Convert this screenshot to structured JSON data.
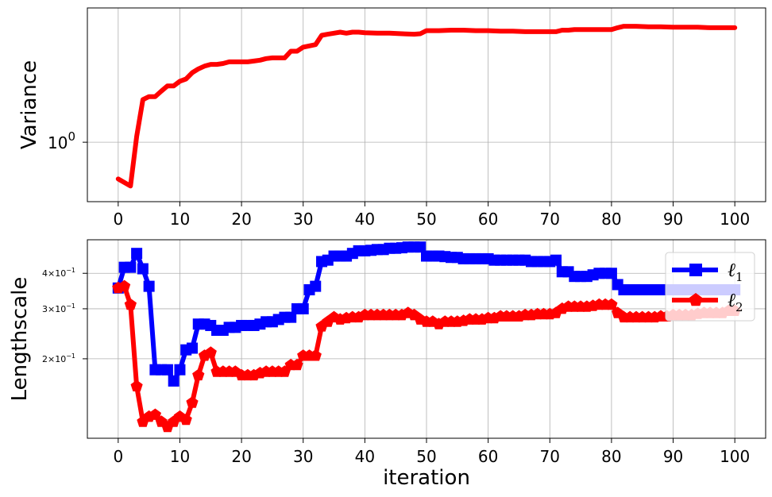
{
  "chart_data": [
    {
      "type": "line",
      "ylabel": "Variance",
      "xlabel": "",
      "yscale": "log",
      "xlim": [
        -5,
        105
      ],
      "ylim": [
        0.38,
        8.9
      ],
      "grid": true,
      "xticks": [
        0,
        10,
        20,
        30,
        40,
        50,
        60,
        70,
        80,
        90,
        100
      ],
      "xtick_labels": [
        "0",
        "10",
        "20",
        "30",
        "40",
        "50",
        "60",
        "70",
        "80",
        "90",
        "100"
      ],
      "yticks": [
        {
          "value": 1,
          "base": "10",
          "exp": "0"
        }
      ],
      "series": [
        {
          "color": "#ff0000",
          "marker": "none",
          "x": [
            0,
            2,
            3,
            4,
            5,
            6,
            7,
            8,
            9,
            10,
            11,
            12,
            13,
            14,
            15,
            16,
            17,
            18,
            19,
            20,
            21,
            22,
            23,
            24,
            25,
            26,
            27,
            28,
            29,
            30,
            31,
            32,
            33,
            34,
            35,
            36,
            37,
            38,
            39,
            40,
            42,
            44,
            46,
            48,
            49,
            50,
            52,
            54,
            56,
            58,
            60,
            62,
            64,
            66,
            68,
            70,
            71,
            72,
            73,
            74,
            76,
            78,
            80,
            81,
            82,
            84,
            86,
            88,
            90,
            92,
            94,
            96,
            98,
            100
          ],
          "y": [
            0.55,
            0.49,
            1.1,
            2.0,
            2.1,
            2.1,
            2.3,
            2.5,
            2.5,
            2.7,
            2.8,
            3.1,
            3.3,
            3.45,
            3.55,
            3.55,
            3.6,
            3.7,
            3.7,
            3.7,
            3.7,
            3.75,
            3.8,
            3.9,
            3.95,
            3.95,
            3.95,
            4.4,
            4.4,
            4.7,
            4.8,
            4.9,
            5.7,
            5.8,
            5.9,
            6.0,
            5.9,
            6.0,
            6.0,
            5.95,
            5.9,
            5.9,
            5.85,
            5.8,
            5.85,
            6.15,
            6.15,
            6.2,
            6.2,
            6.15,
            6.15,
            6.1,
            6.1,
            6.05,
            6.05,
            6.05,
            6.05,
            6.2,
            6.2,
            6.25,
            6.25,
            6.25,
            6.25,
            6.45,
            6.6,
            6.6,
            6.55,
            6.55,
            6.5,
            6.5,
            6.5,
            6.45,
            6.45,
            6.45
          ]
        }
      ]
    },
    {
      "type": "line",
      "ylabel": "Lengthscale",
      "xlabel": "iteration",
      "yscale": "log",
      "xlim": [
        -5,
        105
      ],
      "ylim": [
        0.105,
        0.525
      ],
      "grid": true,
      "legend_position": "top-right",
      "xticks": [
        0,
        10,
        20,
        30,
        40,
        50,
        60,
        70,
        80,
        90,
        100
      ],
      "xtick_labels": [
        "0",
        "10",
        "20",
        "30",
        "40",
        "50",
        "60",
        "70",
        "80",
        "90",
        "100"
      ],
      "yticks": [
        {
          "value": 0.4,
          "coef": "4",
          "base": "10",
          "exp": "−1"
        },
        {
          "value": 0.3,
          "coef": "3",
          "base": "10",
          "exp": "−1"
        },
        {
          "value": 0.2,
          "coef": "2",
          "base": "10",
          "exp": "−1"
        }
      ],
      "series": [
        {
          "name": "ℓ",
          "sub": "1",
          "color": "#0000ff",
          "marker": "square",
          "x": [
            0,
            1,
            2,
            3,
            4,
            5,
            6,
            7,
            8,
            9,
            10,
            11,
            12,
            13,
            14,
            15,
            16,
            17,
            18,
            19,
            20,
            21,
            22,
            23,
            24,
            25,
            26,
            27,
            28,
            29,
            30,
            31,
            32,
            33,
            34,
            35,
            36,
            37,
            38,
            39,
            40,
            41,
            42,
            43,
            44,
            45,
            46,
            47,
            48,
            49,
            50,
            51,
            52,
            53,
            54,
            55,
            56,
            57,
            58,
            59,
            60,
            61,
            62,
            63,
            64,
            65,
            66,
            67,
            68,
            69,
            70,
            71,
            72,
            73,
            74,
            75,
            76,
            77,
            78,
            79,
            80,
            81,
            82,
            83,
            84,
            85,
            86,
            87,
            88,
            89,
            90,
            91,
            92,
            93,
            94,
            95,
            96,
            97,
            98,
            99,
            100
          ],
          "y": [
            0.355,
            0.42,
            0.42,
            0.47,
            0.415,
            0.36,
            0.183,
            0.183,
            0.183,
            0.167,
            0.183,
            0.215,
            0.218,
            0.265,
            0.265,
            0.262,
            0.252,
            0.252,
            0.258,
            0.258,
            0.262,
            0.262,
            0.262,
            0.265,
            0.27,
            0.27,
            0.275,
            0.28,
            0.28,
            0.3,
            0.3,
            0.35,
            0.36,
            0.44,
            0.445,
            0.46,
            0.46,
            0.46,
            0.47,
            0.48,
            0.48,
            0.482,
            0.485,
            0.485,
            0.49,
            0.49,
            0.492,
            0.495,
            0.495,
            0.495,
            0.46,
            0.46,
            0.46,
            0.458,
            0.455,
            0.455,
            0.45,
            0.45,
            0.45,
            0.45,
            0.45,
            0.445,
            0.445,
            0.445,
            0.445,
            0.445,
            0.445,
            0.44,
            0.44,
            0.44,
            0.44,
            0.445,
            0.405,
            0.405,
            0.39,
            0.39,
            0.39,
            0.395,
            0.4,
            0.4,
            0.4,
            0.365,
            0.35,
            0.35,
            0.35,
            0.35,
            0.35,
            0.35,
            0.35,
            0.35,
            0.35,
            0.35,
            0.35,
            0.35,
            0.35,
            0.35,
            0.35,
            0.35,
            0.35,
            0.35,
            0.35
          ]
        },
        {
          "name": "ℓ",
          "sub": "2",
          "color": "#ff0000",
          "marker": "pentagon",
          "x": [
            0,
            1,
            2,
            3,
            4,
            5,
            6,
            7,
            8,
            9,
            10,
            11,
            12,
            13,
            14,
            15,
            16,
            17,
            18,
            19,
            20,
            21,
            22,
            23,
            24,
            25,
            26,
            27,
            28,
            29,
            30,
            31,
            32,
            33,
            34,
            35,
            36,
            37,
            38,
            39,
            40,
            41,
            42,
            43,
            44,
            45,
            46,
            47,
            48,
            49,
            50,
            51,
            52,
            53,
            54,
            55,
            56,
            57,
            58,
            59,
            60,
            61,
            62,
            63,
            64,
            65,
            66,
            67,
            68,
            69,
            70,
            71,
            72,
            73,
            74,
            75,
            76,
            77,
            78,
            79,
            80,
            81,
            82,
            83,
            84,
            85,
            86,
            87,
            88,
            89,
            90,
            91,
            92,
            93,
            94,
            95,
            96,
            97,
            98,
            99,
            100
          ],
          "y": [
            0.355,
            0.36,
            0.31,
            0.16,
            0.12,
            0.125,
            0.127,
            0.12,
            0.115,
            0.12,
            0.125,
            0.122,
            0.14,
            0.175,
            0.205,
            0.21,
            0.18,
            0.18,
            0.18,
            0.18,
            0.175,
            0.175,
            0.175,
            0.178,
            0.18,
            0.18,
            0.18,
            0.18,
            0.19,
            0.19,
            0.205,
            0.205,
            0.205,
            0.26,
            0.27,
            0.28,
            0.275,
            0.278,
            0.28,
            0.28,
            0.285,
            0.285,
            0.285,
            0.285,
            0.285,
            0.285,
            0.285,
            0.29,
            0.285,
            0.275,
            0.27,
            0.27,
            0.265,
            0.27,
            0.27,
            0.27,
            0.272,
            0.275,
            0.275,
            0.275,
            0.278,
            0.278,
            0.282,
            0.282,
            0.282,
            0.282,
            0.285,
            0.285,
            0.287,
            0.287,
            0.287,
            0.29,
            0.3,
            0.305,
            0.305,
            0.305,
            0.305,
            0.307,
            0.31,
            0.31,
            0.31,
            0.29,
            0.28,
            0.28,
            0.28,
            0.28,
            0.28,
            0.28,
            0.282,
            0.282,
            0.285,
            0.285,
            0.285,
            0.285,
            0.288,
            0.29,
            0.29,
            0.29,
            0.29,
            0.295,
            0.295
          ]
        }
      ]
    }
  ]
}
